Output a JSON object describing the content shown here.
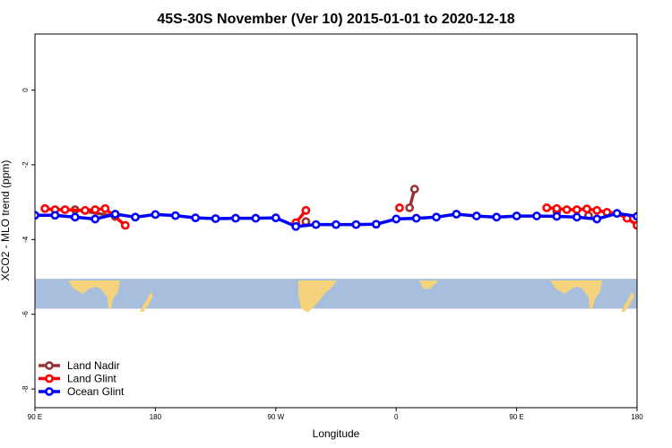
{
  "chart_data": {
    "type": "line",
    "title": "45S-30S November (Ver 10)   2015-01-01 to 2020-12-18",
    "xlabel": "Longitude",
    "ylabel": "XCO2 - MLO trend (ppm)",
    "xlim": [
      -90,
      270
    ],
    "ylim": [
      -8.5,
      1.5
    ],
    "x_ticks": [
      {
        "value": -90,
        "label": "90 E"
      },
      {
        "value": -18,
        "label": "180"
      },
      {
        "value": 54,
        "label": "90 W"
      },
      {
        "value": 126,
        "label": "0"
      },
      {
        "value": 198,
        "label": "90 E"
      },
      {
        "value": 270,
        "label": "180"
      }
    ],
    "y_ticks": [
      {
        "value": 0,
        "label": "0"
      },
      {
        "value": -2,
        "label": "-2"
      },
      {
        "value": -4,
        "label": "-4"
      },
      {
        "value": -6,
        "label": "-6"
      },
      {
        "value": -8,
        "label": "-8"
      }
    ],
    "grid": false,
    "legend_position": "bottom-left",
    "map_band": {
      "y_top": -5.05,
      "y_bottom": -5.85,
      "ocean_color": "#a8bedd",
      "land_color": "#f5d37d"
    },
    "series": [
      {
        "name": "Land Nadir",
        "color": "#993333",
        "segments": [
          [
            [
              -66,
              -3.2
            ],
            [
              -42,
              -3.38
            ]
          ],
          [
            [
              72,
              -3.52
            ]
          ],
          [
            [
              134,
              -3.15
            ],
            [
              137,
              -2.65
            ]
          ],
          [
            [
              222,
              -3.25
            ]
          ],
          [
            [
              241,
              -3.36
            ]
          ]
        ]
      },
      {
        "name": "Land Glint",
        "color": "#ff0000",
        "segments": [
          [
            [
              -84,
              -3.17
            ],
            [
              -78,
              -3.2
            ],
            [
              -72,
              -3.2
            ],
            [
              -60,
              -3.22
            ],
            [
              -54,
              -3.2
            ],
            [
              -48,
              -3.17
            ],
            [
              -36,
              -3.62
            ]
          ],
          [
            [
              66,
              -3.55
            ],
            [
              72,
              -3.22
            ]
          ],
          [
            [
              128,
              -3.15
            ]
          ],
          [
            [
              216,
              -3.15
            ],
            [
              222,
              -3.17
            ],
            [
              228,
              -3.2
            ],
            [
              234,
              -3.2
            ],
            [
              240,
              -3.18
            ],
            [
              246,
              -3.22
            ],
            [
              252,
              -3.27
            ],
            [
              258,
              -3.3
            ],
            [
              264,
              -3.43
            ],
            [
              270,
              -3.62
            ]
          ]
        ]
      },
      {
        "name": "Ocean Glint",
        "color": "#0000ff",
        "segments": [
          [
            [
              -90,
              -3.35
            ],
            [
              -78,
              -3.35
            ],
            [
              -66,
              -3.4
            ],
            [
              -54,
              -3.45
            ],
            [
              -42,
              -3.32
            ],
            [
              -30,
              -3.4
            ],
            [
              -18,
              -3.33
            ],
            [
              -6,
              -3.36
            ],
            [
              6,
              -3.42
            ],
            [
              18,
              -3.44
            ],
            [
              30,
              -3.43
            ],
            [
              42,
              -3.43
            ],
            [
              54,
              -3.42
            ],
            [
              66,
              -3.65
            ],
            [
              78,
              -3.6
            ],
            [
              90,
              -3.6
            ],
            [
              102,
              -3.6
            ],
            [
              114,
              -3.59
            ],
            [
              126,
              -3.45
            ],
            [
              138,
              -3.43
            ],
            [
              150,
              -3.4
            ],
            [
              162,
              -3.32
            ],
            [
              174,
              -3.37
            ],
            [
              186,
              -3.4
            ],
            [
              198,
              -3.37
            ],
            [
              210,
              -3.37
            ],
            [
              222,
              -3.38
            ],
            [
              234,
              -3.4
            ],
            [
              246,
              -3.45
            ],
            [
              258,
              -3.3
            ],
            [
              270,
              -3.38
            ]
          ]
        ]
      }
    ]
  }
}
